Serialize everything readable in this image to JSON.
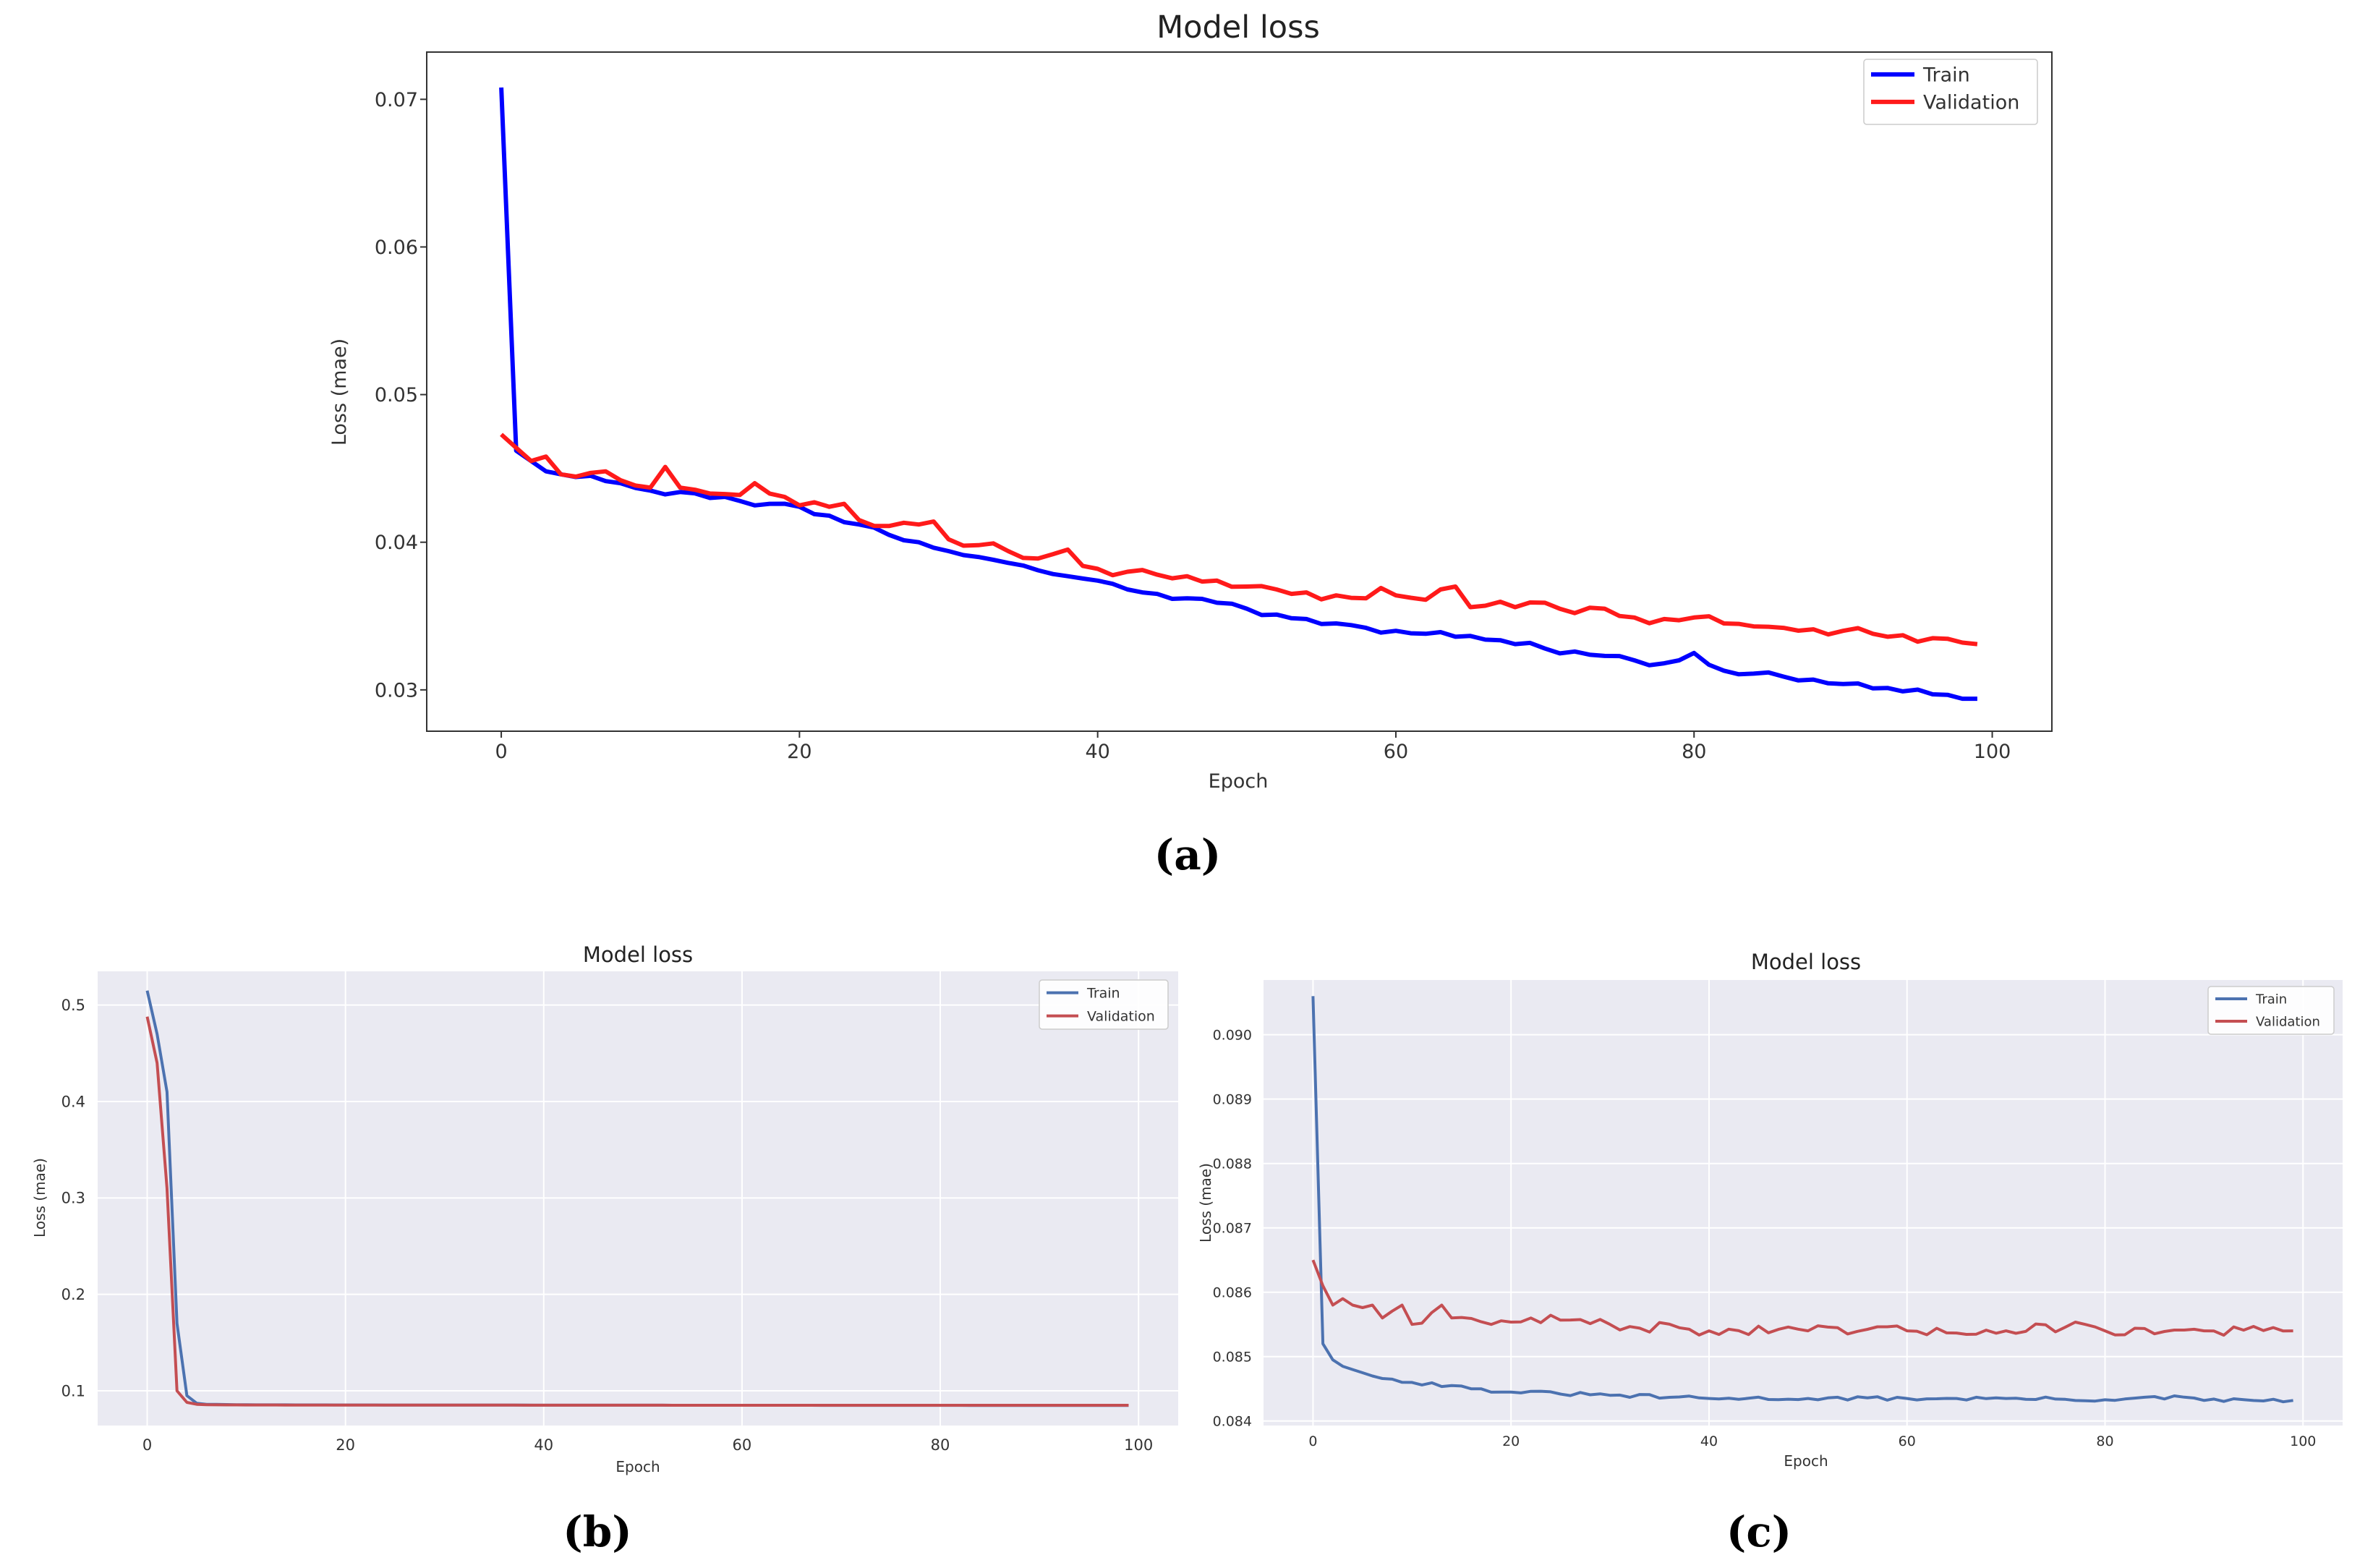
{
  "chart_data": [
    {
      "panel": "a",
      "caption": "(a)",
      "type": "line",
      "title": "Model loss",
      "xlabel": "Epoch",
      "ylabel": "Loss (mae)",
      "xlim": [
        -5,
        104
      ],
      "ylim": [
        0.0272,
        0.0732
      ],
      "xticks": [
        0,
        20,
        40,
        60,
        80,
        100
      ],
      "yticks": [
        0.03,
        0.04,
        0.05,
        0.06,
        0.07
      ],
      "ytick_labels": [
        "0.03",
        "0.04",
        "0.05",
        "0.06",
        "0.07"
      ],
      "grid": false,
      "legend": "top-right",
      "series": [
        {
          "name": "Train",
          "color": "#0000ff",
          "keypoints": [
            [
              0,
              0.0708
            ],
            [
              1,
              0.0462
            ],
            [
              2,
              0.0455
            ],
            [
              3,
              0.0448
            ],
            [
              4,
              0.0446
            ],
            [
              6,
              0.0445
            ],
            [
              8,
              0.044
            ],
            [
              10,
              0.0435
            ],
            [
              12,
              0.0434
            ],
            [
              14,
              0.043
            ],
            [
              16,
              0.0428
            ],
            [
              18,
              0.0426
            ],
            [
              20,
              0.0424
            ],
            [
              22,
              0.0418
            ],
            [
              24,
              0.0412
            ],
            [
              26,
              0.0405
            ],
            [
              28,
              0.04
            ],
            [
              30,
              0.0394
            ],
            [
              32,
              0.039
            ],
            [
              34,
              0.0386
            ],
            [
              36,
              0.0381
            ],
            [
              38,
              0.0377
            ],
            [
              40,
              0.0374
            ],
            [
              42,
              0.0368
            ],
            [
              44,
              0.0365
            ],
            [
              46,
              0.0362
            ],
            [
              48,
              0.0359
            ],
            [
              50,
              0.0355
            ],
            [
              52,
              0.0351
            ],
            [
              54,
              0.0348
            ],
            [
              56,
              0.0345
            ],
            [
              58,
              0.0342
            ],
            [
              60,
              0.034
            ],
            [
              62,
              0.0338
            ],
            [
              64,
              0.0336
            ],
            [
              66,
              0.0334
            ],
            [
              68,
              0.0331
            ],
            [
              70,
              0.0328
            ],
            [
              72,
              0.0326
            ],
            [
              74,
              0.0323
            ],
            [
              76,
              0.032
            ],
            [
              78,
              0.0318
            ],
            [
              79,
              0.032
            ],
            [
              80,
              0.0325
            ],
            [
              81,
              0.0317
            ],
            [
              82,
              0.0313
            ],
            [
              84,
              0.0311
            ],
            [
              86,
              0.0309
            ],
            [
              88,
              0.0307
            ],
            [
              90,
              0.0304
            ],
            [
              92,
              0.0301
            ],
            [
              94,
              0.0299
            ],
            [
              96,
              0.0297
            ],
            [
              98,
              0.0294
            ],
            [
              99,
              0.0294
            ]
          ],
          "noise": 0.00025,
          "seed": 11
        },
        {
          "name": "Validation",
          "color": "#ff1a1a",
          "keypoints": [
            [
              0,
              0.0473
            ],
            [
              1,
              0.0464
            ],
            [
              2,
              0.0455
            ],
            [
              3,
              0.0458
            ],
            [
              4,
              0.0446
            ],
            [
              6,
              0.0447
            ],
            [
              7,
              0.0448
            ],
            [
              8,
              0.0442
            ],
            [
              10,
              0.0437
            ],
            [
              11,
              0.0451
            ],
            [
              12,
              0.0437
            ],
            [
              14,
              0.0433
            ],
            [
              16,
              0.0432
            ],
            [
              17,
              0.044
            ],
            [
              18,
              0.0433
            ],
            [
              20,
              0.0425
            ],
            [
              22,
              0.0424
            ],
            [
              23,
              0.0426
            ],
            [
              24,
              0.0415
            ],
            [
              26,
              0.0411
            ],
            [
              28,
              0.0412
            ],
            [
              29,
              0.0414
            ],
            [
              30,
              0.0402
            ],
            [
              32,
              0.0398
            ],
            [
              34,
              0.0394
            ],
            [
              36,
              0.0389
            ],
            [
              38,
              0.0395
            ],
            [
              39,
              0.0384
            ],
            [
              40,
              0.0382
            ],
            [
              42,
              0.038
            ],
            [
              44,
              0.0378
            ],
            [
              46,
              0.0377
            ],
            [
              48,
              0.0374
            ],
            [
              50,
              0.037
            ],
            [
              52,
              0.0368
            ],
            [
              54,
              0.0366
            ],
            [
              56,
              0.0364
            ],
            [
              58,
              0.0362
            ],
            [
              59,
              0.0369
            ],
            [
              60,
              0.0364
            ],
            [
              62,
              0.0361
            ],
            [
              64,
              0.037
            ],
            [
              65,
              0.0356
            ],
            [
              66,
              0.0357
            ],
            [
              68,
              0.0356
            ],
            [
              70,
              0.0359
            ],
            [
              72,
              0.0352
            ],
            [
              74,
              0.0355
            ],
            [
              76,
              0.0349
            ],
            [
              78,
              0.0348
            ],
            [
              80,
              0.0349
            ],
            [
              82,
              0.0345
            ],
            [
              84,
              0.0343
            ],
            [
              86,
              0.0342
            ],
            [
              88,
              0.0341
            ],
            [
              90,
              0.034
            ],
            [
              92,
              0.0338
            ],
            [
              94,
              0.0337
            ],
            [
              96,
              0.0335
            ],
            [
              98,
              0.0332
            ],
            [
              99,
              0.0331
            ]
          ],
          "noise": 0.0004,
          "seed": 23
        }
      ]
    },
    {
      "panel": "b",
      "caption": "(b)",
      "type": "line",
      "title": "Model loss",
      "xlabel": "Epoch",
      "ylabel": "Loss (mae)",
      "xlim": [
        -5,
        104
      ],
      "ylim": [
        0.064,
        0.535
      ],
      "xticks": [
        0,
        20,
        40,
        60,
        80,
        100
      ],
      "yticks": [
        0.1,
        0.2,
        0.3,
        0.4,
        0.5
      ],
      "ytick_labels": [
        "0.1",
        "0.2",
        "0.3",
        "0.4",
        "0.5"
      ],
      "grid": true,
      "legend": "top-right",
      "series": [
        {
          "name": "Train",
          "color": "#4c72b0",
          "keypoints": [
            [
              0,
              0.515
            ],
            [
              1,
              0.47
            ],
            [
              2,
              0.41
            ],
            [
              3,
              0.17
            ],
            [
              4,
              0.095
            ],
            [
              5,
              0.087
            ],
            [
              6,
              0.086
            ],
            [
              10,
              0.0855
            ],
            [
              20,
              0.0853
            ],
            [
              40,
              0.0851
            ],
            [
              60,
              0.085
            ],
            [
              80,
              0.0849
            ],
            [
              99,
              0.0848
            ]
          ],
          "noise": 0.0,
          "seed": 5
        },
        {
          "name": "Validation",
          "color": "#c44e52",
          "keypoints": [
            [
              0,
              0.488
            ],
            [
              1,
              0.44
            ],
            [
              2,
              0.31
            ],
            [
              3,
              0.1
            ],
            [
              4,
              0.088
            ],
            [
              5,
              0.086
            ],
            [
              6,
              0.0855
            ],
            [
              10,
              0.0853
            ],
            [
              20,
              0.0852
            ],
            [
              40,
              0.0851
            ],
            [
              60,
              0.085
            ],
            [
              80,
              0.085
            ],
            [
              99,
              0.085
            ]
          ],
          "noise": 0.0,
          "seed": 7
        }
      ]
    },
    {
      "panel": "c",
      "caption": "(c)",
      "type": "line",
      "title": "Model loss",
      "xlabel": "Epoch",
      "ylabel": "Loss (mae)",
      "xlim": [
        -5,
        104
      ],
      "ylim": [
        0.08393,
        0.09085
      ],
      "xticks": [
        0,
        20,
        40,
        60,
        80,
        100
      ],
      "yticks": [
        0.084,
        0.085,
        0.086,
        0.087,
        0.088,
        0.089,
        0.09
      ],
      "ytick_labels": [
        "0.084",
        "0.085",
        "0.086",
        "0.087",
        "0.088",
        "0.089",
        "0.090"
      ],
      "grid": true,
      "legend": "top-right",
      "series": [
        {
          "name": "Train",
          "color": "#4c72b0",
          "keypoints": [
            [
              0,
              0.0906
            ],
            [
              1,
              0.0852
            ],
            [
              2,
              0.08495
            ],
            [
              3,
              0.08485
            ],
            [
              4,
              0.0848
            ],
            [
              5,
              0.08475
            ],
            [
              6,
              0.0847
            ],
            [
              8,
              0.08465
            ],
            [
              10,
              0.0846
            ],
            [
              14,
              0.08455
            ],
            [
              16,
              0.0845
            ],
            [
              20,
              0.08445
            ],
            [
              30,
              0.0844
            ],
            [
              40,
              0.08435
            ],
            [
              50,
              0.08435
            ],
            [
              60,
              0.08435
            ],
            [
              70,
              0.08435
            ],
            [
              80,
              0.08433
            ],
            [
              88,
              0.08437
            ],
            [
              90,
              0.08432
            ],
            [
              99,
              0.08432
            ]
          ],
          "noise": 3e-05,
          "seed": 31
        },
        {
          "name": "Validation",
          "color": "#c44e52",
          "keypoints": [
            [
              0,
              0.0865
            ],
            [
              1,
              0.0861
            ],
            [
              2,
              0.0858
            ],
            [
              3,
              0.0859
            ],
            [
              4,
              0.0858
            ],
            [
              6,
              0.0858
            ],
            [
              7,
              0.0856
            ],
            [
              9,
              0.0858
            ],
            [
              10,
              0.0855
            ],
            [
              13,
              0.0858
            ],
            [
              14,
              0.0856
            ],
            [
              18,
              0.0855
            ],
            [
              22,
              0.0856
            ],
            [
              30,
              0.0855
            ],
            [
              40,
              0.0854
            ],
            [
              50,
              0.0854
            ],
            [
              60,
              0.0854
            ],
            [
              70,
              0.0854
            ],
            [
              78,
              0.0855
            ],
            [
              80,
              0.0854
            ],
            [
              90,
              0.0854
            ],
            [
              99,
              0.0854
            ]
          ],
          "noise": 8e-05,
          "seed": 47
        }
      ]
    }
  ]
}
